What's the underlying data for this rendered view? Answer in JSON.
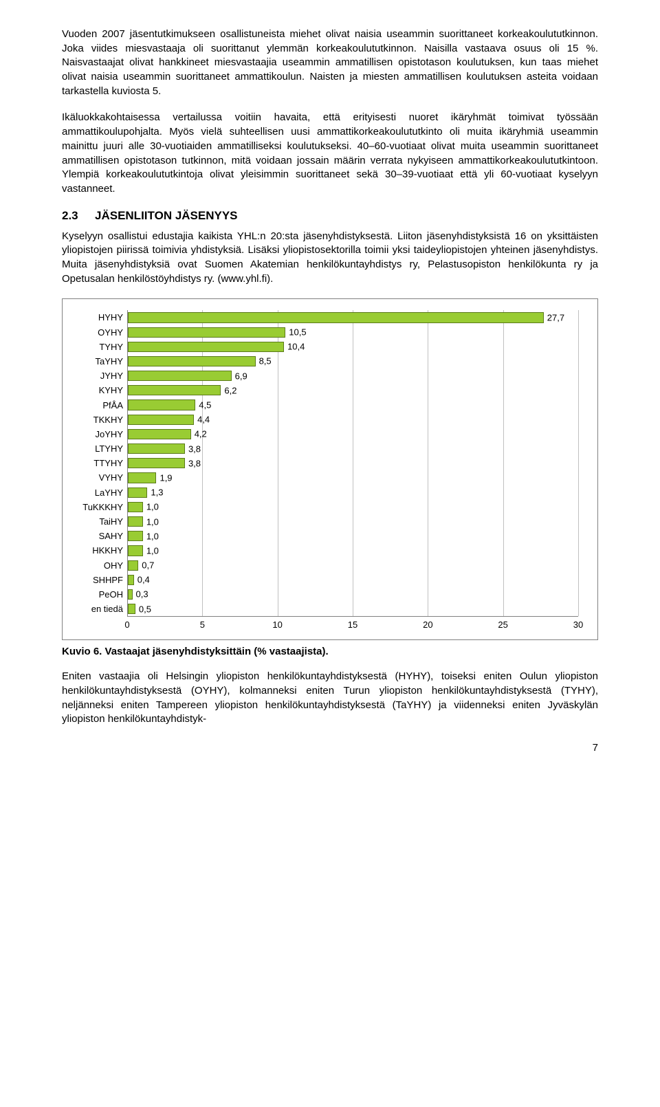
{
  "paragraphs": {
    "p1": "Vuoden 2007 jäsentutkimukseen osallistuneista miehet olivat naisia useammin suorittaneet korkeakoulututkinnon. Joka viides miesvastaaja oli suorittanut ylemmän korkeakoulututkinnon. Naisilla vastaava osuus oli 15 %. Naisvastaajat olivat hankkineet miesvastaajia useammin ammatillisen opistotason koulutuksen, kun taas miehet olivat naisia useammin suorittaneet ammattikoulun. Naisten ja miesten ammatillisen koulutuksen asteita voidaan tarkastella kuviosta 5.",
    "p2": "Ikäluokkakohtaisessa vertailussa voitiin havaita, että erityisesti nuoret ikäryhmät toimivat työssään ammattikoulupohjalta. Myös vielä suhteellisen uusi ammattikorkeakoulututkinto oli muita ikäryhmiä useammin mainittu juuri alle 30-vuotiaiden ammatilliseksi koulutukseksi. 40–60-vuotiaat olivat muita useammin suorittaneet ammatillisen opistotason tutkinnon, mitä voidaan jossain määrin verrata nykyiseen ammattikorkeakoulututkintoon. Ylempiä korkeakoulututkintoja olivat yleisimmin suorittaneet sekä 30–39-vuotiaat että yli 60-vuotiaat kyselyyn vastanneet.",
    "p3": "Kyselyyn osallistui edustajia kaikista YHL:n 20:sta jäsenyhdistyksestä. Liiton jäsenyhdistyksistä 16 on yksittäisten yliopistojen piirissä toimivia yhdistyksiä. Lisäksi yliopistosektorilla toimii yksi taideyliopistojen yhteinen jäsenyhdistys. Muita jäsenyhdistyksiä ovat Suomen Akatemian henkilökuntayhdistys ry, Pelastusopiston henkilökunta ry ja Opetusalan henkilöstöyhdistys ry. (www.yhl.fi).",
    "p4": "Eniten vastaajia oli Helsingin yliopiston henkilökuntayhdistyksestä (HYHY), toiseksi eniten Oulun yliopiston henkilökuntayhdistyksestä (OYHY), kolmanneksi eniten Turun yliopiston henkilökuntayhdistyksestä (TYHY), neljänneksi eniten Tampereen yliopiston henkilökuntayhdistyksestä (TaYHY) ja viidenneksi eniten Jyväskylän yliopiston henkilökuntayhdistyk-"
  },
  "section": {
    "num": "2.3",
    "title": "JÄSENLIITON JÄSENYYS"
  },
  "chart": {
    "type": "bar-horizontal",
    "xmax": 30,
    "xticks": [
      0,
      5,
      10,
      15,
      20,
      25,
      30
    ],
    "bar_color": "#99cc33",
    "bar_border": "#5a7a1a",
    "grid_color": "#c0c0c0",
    "categories": [
      "HYHY",
      "OYHY",
      "TYHY",
      "TaYHY",
      "JYHY",
      "KYHY",
      "PfÅA",
      "TKKHY",
      "JoYHY",
      "LTYHY",
      "TTYHY",
      "VYHY",
      "LaYHY",
      "TuKKKHY",
      "TaiHY",
      "SAHY",
      "HKKHY",
      "OHY",
      "SHHPF",
      "PeOH",
      "en tiedä"
    ],
    "values": [
      27.7,
      10.5,
      10.4,
      8.5,
      6.9,
      6.2,
      4.5,
      4.4,
      4.2,
      3.8,
      3.8,
      1.9,
      1.3,
      1.0,
      1.0,
      1.0,
      1.0,
      0.7,
      0.4,
      0.3,
      0.5
    ],
    "value_labels": [
      "27,7",
      "10,5",
      "10,4",
      "8,5",
      "6,9",
      "6,2",
      "4,5",
      "4,4",
      "4,2",
      "3,8",
      "3,8",
      "1,9",
      "1,3",
      "1,0",
      "1,0",
      "1,0",
      "1,0",
      "0,7",
      "0,4",
      "0,3",
      "0,5"
    ]
  },
  "caption": "Kuvio 6. Vastaajat jäsenyhdistyksittäin (% vastaajista).",
  "pagenum": "7"
}
